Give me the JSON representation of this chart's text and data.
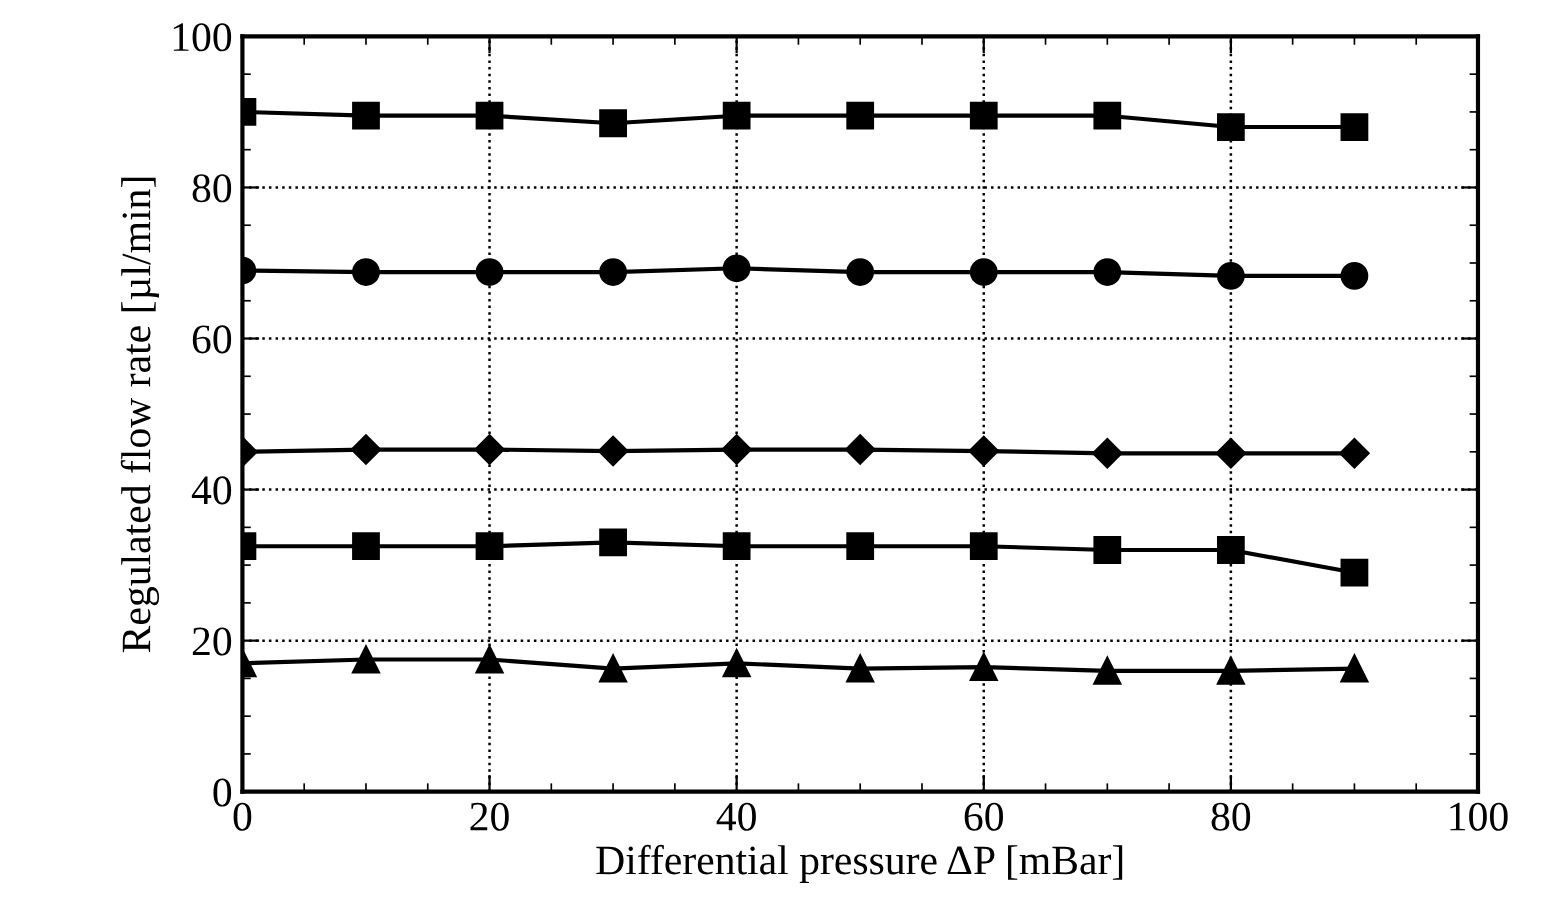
{
  "chart_data": {
    "type": "line",
    "xlabel": "Differential pressure ΔP [mBar]",
    "ylabel": "Regulated flow rate [µl/min]",
    "x": [
      0,
      10,
      20,
      30,
      40,
      50,
      60,
      70,
      80,
      90
    ],
    "series": [
      {
        "color": "#000000",
        "marker": "square",
        "values": [
          90,
          89.5,
          89.5,
          88.5,
          89.5,
          89.5,
          89.5,
          89.5,
          88,
          88
        ]
      },
      {
        "color": "#000000",
        "marker": "circle",
        "values": [
          69,
          68.8,
          68.8,
          68.8,
          69.3,
          68.8,
          68.8,
          68.8,
          68.3,
          68.3
        ]
      },
      {
        "color": "#000000",
        "marker": "diamond",
        "values": [
          45,
          45.3,
          45.3,
          45.1,
          45.3,
          45.3,
          45.1,
          44.8,
          44.8,
          44.8
        ]
      },
      {
        "color": "#000000",
        "marker": "square",
        "values": [
          32.5,
          32.5,
          32.5,
          33,
          32.5,
          32.5,
          32.5,
          32,
          32,
          29
        ]
      },
      {
        "color": "#000000",
        "marker": "triangle",
        "values": [
          17,
          17.5,
          17.5,
          16.3,
          17,
          16.3,
          16.5,
          16,
          16,
          16.3
        ]
      }
    ],
    "xlim": [
      0,
      100
    ],
    "xticks": [
      0,
      20,
      40,
      60,
      80,
      100
    ],
    "ylim": [
      0,
      100
    ],
    "yticks": [
      0,
      20,
      40,
      60,
      80,
      100
    ],
    "grid": true,
    "line_style": "solid"
  }
}
